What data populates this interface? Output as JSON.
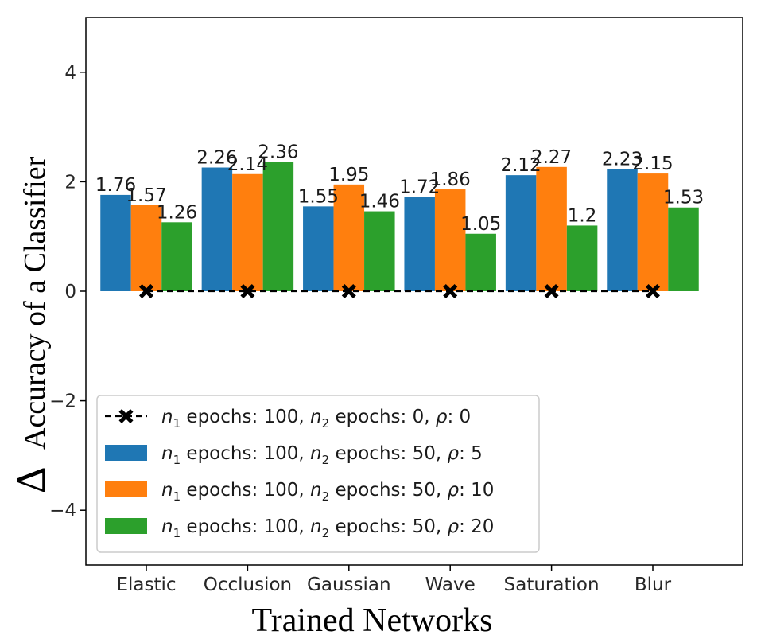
{
  "chart_data": {
    "type": "bar",
    "categories": [
      "Elastic",
      "Occlusion",
      "Gaussian",
      "Wave",
      "Saturation",
      "Blur"
    ],
    "series": [
      {
        "name_prefix": "n",
        "n1_sub": "1",
        "mid": " epochs: 100, ",
        "n2_sub": "2",
        "suffix": " epochs: 50, ",
        "rho": "ρ",
        "rho_value": ": 5",
        "color": "#1f77b4",
        "values": [
          1.76,
          2.26,
          1.55,
          1.72,
          2.12,
          2.23
        ],
        "labels": [
          "1.76",
          "2.26",
          "1.55",
          "1.72",
          "2.12",
          "2.23"
        ]
      },
      {
        "name_prefix": "n",
        "n1_sub": "1",
        "mid": " epochs: 100, ",
        "n2_sub": "2",
        "suffix": " epochs: 50, ",
        "rho": "ρ",
        "rho_value": ": 10",
        "color": "#ff7f0e",
        "values": [
          1.57,
          2.14,
          1.95,
          1.86,
          2.27,
          2.15
        ],
        "labels": [
          "1.57",
          "2.14",
          "1.95",
          "1.86",
          "2.27",
          "2.15"
        ]
      },
      {
        "name_prefix": "n",
        "n1_sub": "1",
        "mid": " epochs: 100, ",
        "n2_sub": "2",
        "suffix": " epochs: 50, ",
        "rho": "ρ",
        "rho_value": ": 20",
        "color": "#2ca02c",
        "values": [
          1.26,
          2.36,
          1.46,
          1.05,
          1.2,
          1.53
        ],
        "labels": [
          "1.26",
          "2.36",
          "1.46",
          "1.05",
          "1.2",
          "1.53"
        ]
      }
    ],
    "baseline": {
      "name_prefix": "n",
      "n1_sub": "1",
      "mid": " epochs: 100, ",
      "n2_sub": "2",
      "suffix": " epochs: 0, ",
      "rho": "ρ",
      "rho_value": ": 0",
      "color": "#000000",
      "style": "dashed",
      "marker": "X",
      "values": [
        0,
        0,
        0,
        0,
        0,
        0
      ]
    },
    "ylim": [
      -5,
      5
    ],
    "yticks": [
      -4,
      -2,
      0,
      2,
      4
    ],
    "ytick_labels": [
      "−4",
      "−2",
      "0",
      "2",
      "4"
    ],
    "xlabel": "Trained Networks",
    "ylabel_delta": "Δ",
    "ylabel": "Accuracy of a Classifier",
    "legend_position": "lower-left",
    "grid": false
  }
}
